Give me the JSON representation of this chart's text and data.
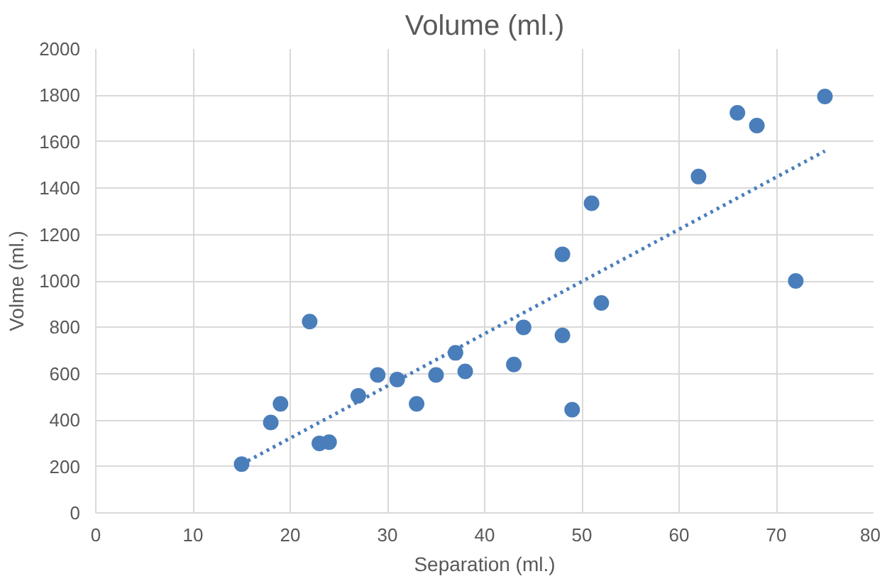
{
  "chart_data": {
    "type": "scatter",
    "title": "Volume (ml.)",
    "xlabel": "Separation (ml.)",
    "ylabel": "Volme (ml.)",
    "xlim": [
      0,
      80
    ],
    "xticks": [
      0,
      10,
      20,
      30,
      40,
      50,
      60,
      70,
      80
    ],
    "ylim": [
      0,
      2000
    ],
    "yticks": [
      0,
      200,
      400,
      600,
      800,
      1000,
      1200,
      1400,
      1600,
      1800,
      2000
    ],
    "grid": true,
    "series": [
      {
        "marker": "circle",
        "color": "#4a7ebb",
        "x": [
          15,
          18,
          19,
          22,
          23,
          24,
          27,
          29,
          31,
          33,
          35,
          37,
          38,
          43,
          44,
          48,
          48,
          49,
          51,
          52,
          62,
          66,
          68,
          72,
          75
        ],
        "values": [
          210,
          390,
          470,
          825,
          300,
          305,
          505,
          595,
          575,
          470,
          595,
          690,
          610,
          640,
          800,
          1115,
          765,
          445,
          1335,
          905,
          1450,
          1725,
          1670,
          1000,
          1795
        ]
      },
      {
        "type": "line",
        "line_style": "dotted",
        "color": "#4a7ebb",
        "x": [
          15,
          75
        ],
        "values": [
          210,
          1560
        ]
      }
    ]
  }
}
